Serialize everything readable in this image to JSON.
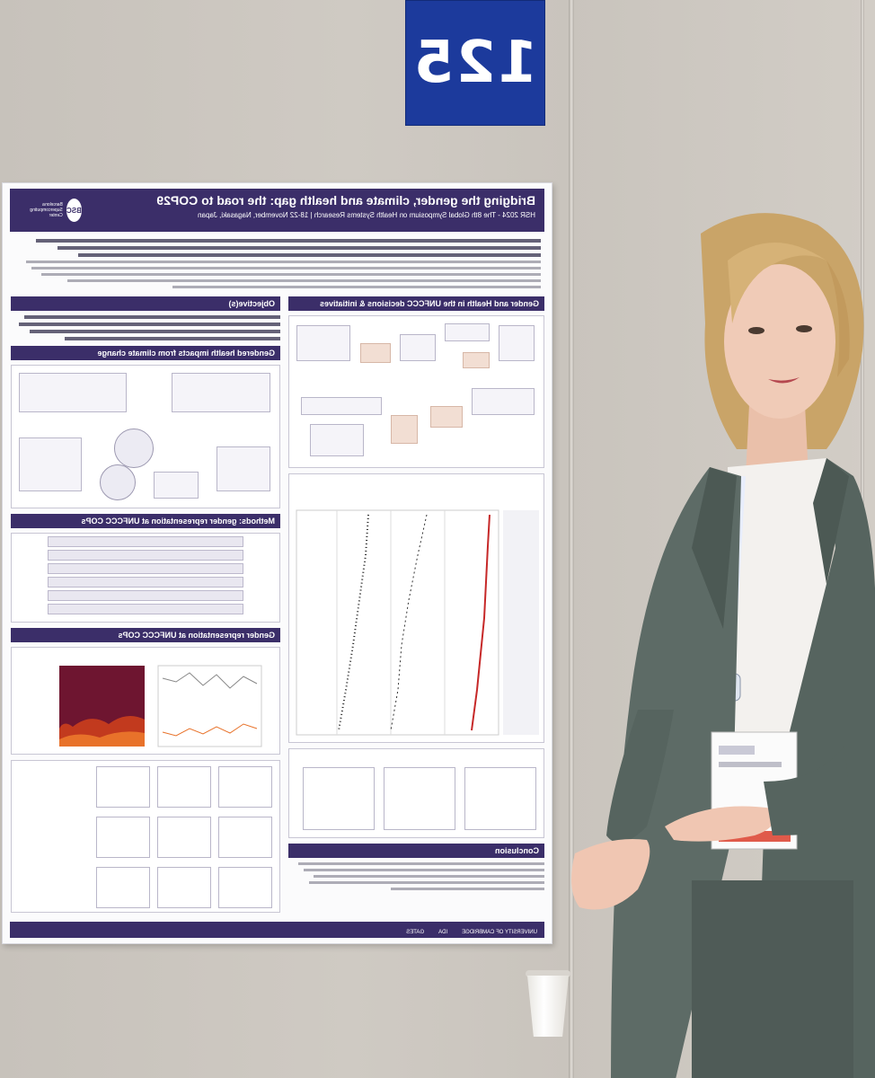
{
  "board": {
    "number": "125"
  },
  "poster": {
    "title": "Bridging the gender, climate and health gap: the road to COP29",
    "subtitle": "HSR 2024 - The 8th Global Symposium on Health Systems Research | 18-22 November, Nagasaki, Japan",
    "logo_text": "BSC",
    "logo_caption": "Barcelona Supercomputing Center",
    "sections": {
      "gender_health_unfccc": "Gender and Health in the UNFCCC decisions & initiatives",
      "objectives": "Objective(s)",
      "gendered_impacts": "Gendered health impacts from climate change",
      "methods": "Methods: gender representation at UNFCCC COPs",
      "representation": "Gender representation at UNFCCC COPs",
      "conclusion": "Conclusion"
    },
    "funders": [
      "UNIVERSITY OF CAMBRIDGE",
      "IDA",
      "GATES"
    ]
  },
  "colors": {
    "poster_header": "#3b2e69",
    "board_sign": "#1c3a9c",
    "heatmap_dark": "#6e1530",
    "heatmap_light": "#e8722a"
  }
}
